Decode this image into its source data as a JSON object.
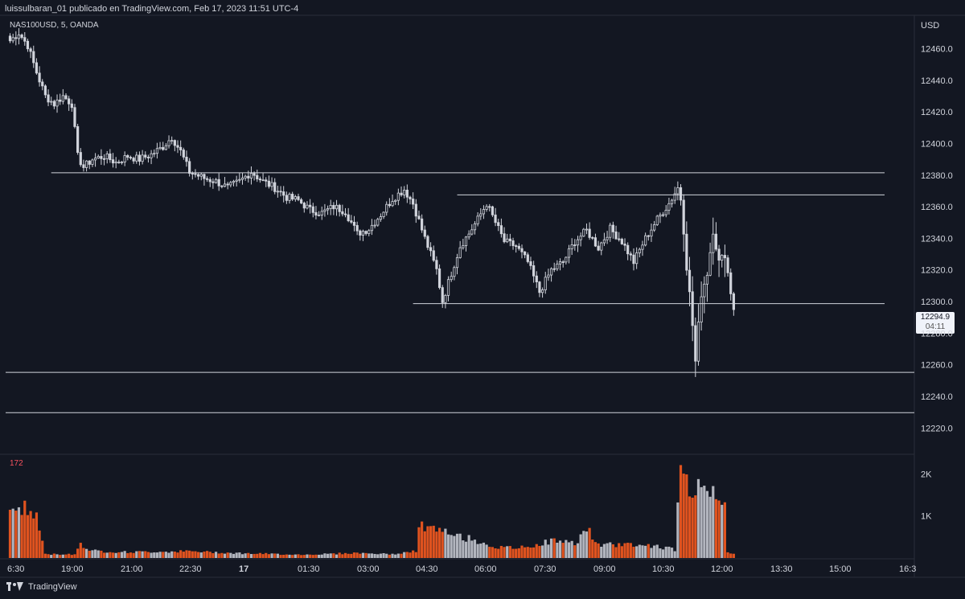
{
  "header": {
    "publisher_line": "luissulbaran_01 publicado en TradingView.com, Feb 17, 2023 11:51 UTC-4",
    "symbol_line": "NAS100USD, 5, OANDA",
    "volume_label": "172",
    "currency": "USD",
    "last_price": "12294.9",
    "countdown": "04:11",
    "brand": "TradingView"
  },
  "colors": {
    "background": "#131722",
    "up": "#d1d4dc",
    "down": "#d1d4dc",
    "vol_up": "#b2b5be",
    "vol_down": "#e0531f"
  },
  "chart_data": {
    "type": "candlestick",
    "instrument": "NAS100USD",
    "interval": "5",
    "x_ticks": [
      "6:30",
      "19:00",
      "21:00",
      "22:30",
      "17",
      "01:30",
      "03:00",
      "04:30",
      "06:00",
      "07:30",
      "09:00",
      "10:30",
      "12:00",
      "13:30",
      "15:00",
      "16:3"
    ],
    "y_ticks": [
      "12460.0",
      "12440.0",
      "12420.0",
      "12400.0",
      "12380.0",
      "12360.0",
      "12340.0",
      "12320.0",
      "12300.0",
      "12280.0",
      "12260.0",
      "12240.0",
      "12220.0"
    ],
    "ylim": [
      12212,
      12474
    ],
    "vol_ticks": [
      "2K",
      "1K"
    ],
    "vol_ylim": [
      0,
      2200
    ],
    "hlines": [
      {
        "price": 12381.5,
        "from_bar": 14,
        "to_bar": 300
      },
      {
        "price": 12367.5,
        "from_bar": 152,
        "to_bar": 300
      },
      {
        "price": 12298.7,
        "from_bar": 137,
        "to_bar": 300
      },
      {
        "price": 12255.2,
        "from_bar": -2,
        "to_bar": 300
      },
      {
        "price": 12229.7,
        "from_bar": -2,
        "to_bar": 300
      }
    ],
    "close_anchors": [
      [
        0,
        12465
      ],
      [
        3,
        12470
      ],
      [
        6,
        12462
      ],
      [
        9,
        12445
      ],
      [
        12,
        12430
      ],
      [
        15,
        12425
      ],
      [
        18,
        12430
      ],
      [
        21,
        12425
      ],
      [
        23,
        12392
      ],
      [
        25,
        12385
      ],
      [
        28,
        12390
      ],
      [
        32,
        12392
      ],
      [
        36,
        12388
      ],
      [
        40,
        12392
      ],
      [
        44,
        12390
      ],
      [
        48,
        12393
      ],
      [
        52,
        12398
      ],
      [
        55,
        12404
      ],
      [
        58,
        12395
      ],
      [
        61,
        12382
      ],
      [
        66,
        12378
      ],
      [
        70,
        12376
      ],
      [
        74,
        12372
      ],
      [
        78,
        12376
      ],
      [
        82,
        12382
      ],
      [
        86,
        12376
      ],
      [
        90,
        12372
      ],
      [
        94,
        12366
      ],
      [
        98,
        12364
      ],
      [
        102,
        12358
      ],
      [
        106,
        12356
      ],
      [
        110,
        12360
      ],
      [
        114,
        12357
      ],
      [
        118,
        12343
      ],
      [
        122,
        12346
      ],
      [
        126,
        12355
      ],
      [
        130,
        12365
      ],
      [
        134,
        12371
      ],
      [
        137,
        12362
      ],
      [
        141,
        12340
      ],
      [
        145,
        12320
      ],
      [
        147,
        12300
      ],
      [
        150,
        12318
      ],
      [
        153,
        12335
      ],
      [
        156,
        12343
      ],
      [
        159,
        12352
      ],
      [
        162,
        12362
      ],
      [
        165,
        12350
      ],
      [
        168,
        12338
      ],
      [
        172,
        12335
      ],
      [
        176,
        12325
      ],
      [
        180,
        12306
      ],
      [
        184,
        12320
      ],
      [
        188,
        12325
      ],
      [
        192,
        12338
      ],
      [
        196,
        12345
      ],
      [
        200,
        12334
      ],
      [
        204,
        12346
      ],
      [
        208,
        12338
      ],
      [
        212,
        12325
      ],
      [
        216,
        12340
      ],
      [
        220,
        12352
      ],
      [
        224,
        12362
      ],
      [
        227,
        12372
      ],
      [
        228,
        12365
      ],
      [
        229,
        12345
      ],
      [
        230,
        12322
      ],
      [
        231,
        12305
      ],
      [
        232,
        12285
      ],
      [
        233,
        12262
      ],
      [
        234,
        12285
      ],
      [
        235,
        12305
      ],
      [
        237,
        12318
      ],
      [
        239,
        12345
      ],
      [
        241,
        12325
      ],
      [
        243,
        12330
      ],
      [
        245,
        12306
      ],
      [
        246,
        12294.9
      ]
    ],
    "volume_anchors": [
      [
        0,
        1050
      ],
      [
        3,
        1250
      ],
      [
        6,
        1100
      ],
      [
        9,
        1000
      ],
      [
        11,
        400
      ],
      [
        12,
        90
      ],
      [
        22,
        90
      ],
      [
        24,
        350
      ],
      [
        26,
        220
      ],
      [
        30,
        160
      ],
      [
        40,
        140
      ],
      [
        60,
        160
      ],
      [
        80,
        110
      ],
      [
        100,
        80
      ],
      [
        118,
        120
      ],
      [
        130,
        90
      ],
      [
        138,
        160
      ],
      [
        139,
        780
      ],
      [
        145,
        650
      ],
      [
        150,
        560
      ],
      [
        158,
        430
      ],
      [
        166,
        240
      ],
      [
        175,
        250
      ],
      [
        185,
        420
      ],
      [
        192,
        340
      ],
      [
        196,
        720
      ],
      [
        200,
        300
      ],
      [
        210,
        330
      ],
      [
        220,
        280
      ],
      [
        226,
        200
      ],
      [
        228,
        2200
      ],
      [
        229,
        1850
      ],
      [
        232,
        1680
      ],
      [
        234,
        1600
      ],
      [
        237,
        1780
      ],
      [
        239,
        1580
      ],
      [
        241,
        1500
      ],
      [
        243,
        1450
      ],
      [
        244,
        160
      ],
      [
        246,
        100
      ]
    ]
  }
}
